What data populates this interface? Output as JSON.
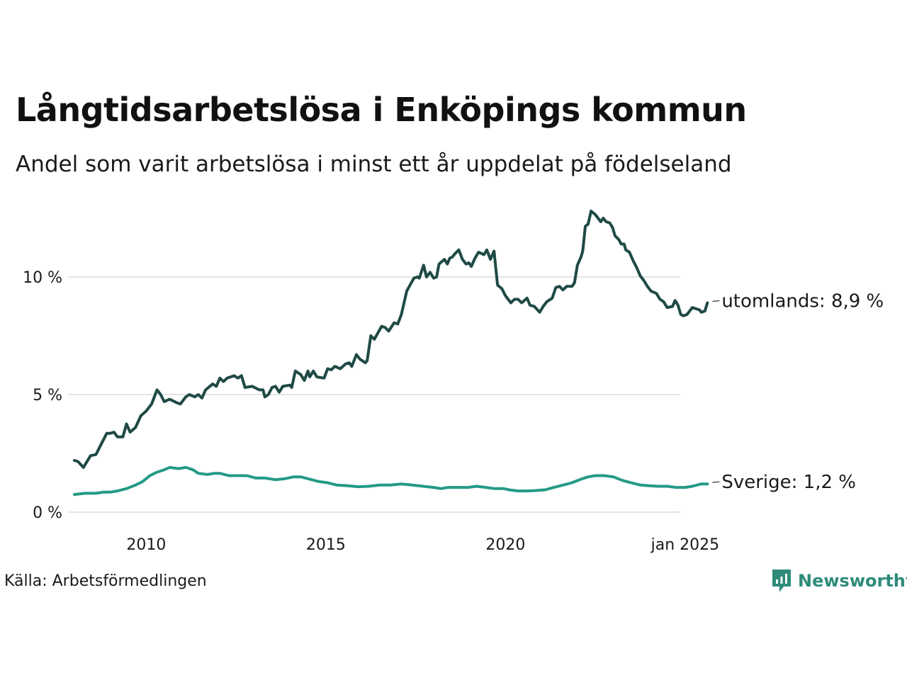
{
  "chart_data": {
    "type": "line",
    "title": "Långtidsarbetslösa i Enköpings kommun",
    "subtitle": "Andel som varit arbetslösa i minst ett år uppdelat på födelseland",
    "xlabel": "",
    "ylabel": "",
    "x_range": [
      2008.0,
      2025.0
    ],
    "ylim": [
      0,
      13
    ],
    "grid": true,
    "y_ticks": [
      {
        "value": 0,
        "label": "0 %"
      },
      {
        "value": 5,
        "label": "5 %"
      },
      {
        "value": 10,
        "label": "10 %"
      }
    ],
    "x_ticks": [
      {
        "value": 2010,
        "label": "2010"
      },
      {
        "value": 2015,
        "label": "2015"
      },
      {
        "value": 2020,
        "label": "2020"
      },
      {
        "value": 2025,
        "label": "jan 2025"
      }
    ],
    "series": [
      {
        "name": "utomlands",
        "end_label": "utomlands: 8,9 %",
        "color": "#1f4a45",
        "points": [
          [
            2008.0,
            2.2
          ],
          [
            2008.1,
            2.15
          ],
          [
            2008.25,
            1.9
          ],
          [
            2008.45,
            2.4
          ],
          [
            2008.6,
            2.45
          ],
          [
            2008.75,
            2.9
          ],
          [
            2008.9,
            3.35
          ],
          [
            2009.0,
            3.35
          ],
          [
            2009.1,
            3.4
          ],
          [
            2009.2,
            3.2
          ],
          [
            2009.35,
            3.2
          ],
          [
            2009.45,
            3.75
          ],
          [
            2009.55,
            3.4
          ],
          [
            2009.7,
            3.6
          ],
          [
            2009.85,
            4.1
          ],
          [
            2010.0,
            4.3
          ],
          [
            2010.15,
            4.6
          ],
          [
            2010.3,
            5.2
          ],
          [
            2010.4,
            5.0
          ],
          [
            2010.5,
            4.7
          ],
          [
            2010.65,
            4.8
          ],
          [
            2010.85,
            4.65
          ],
          [
            2010.95,
            4.6
          ],
          [
            2011.1,
            4.9
          ],
          [
            2011.2,
            5.0
          ],
          [
            2011.35,
            4.9
          ],
          [
            2011.45,
            5.0
          ],
          [
            2011.55,
            4.85
          ],
          [
            2011.65,
            5.2
          ],
          [
            2011.85,
            5.45
          ],
          [
            2011.95,
            5.35
          ],
          [
            2012.05,
            5.7
          ],
          [
            2012.15,
            5.55
          ],
          [
            2012.25,
            5.7
          ],
          [
            2012.45,
            5.8
          ],
          [
            2012.55,
            5.7
          ],
          [
            2012.65,
            5.8
          ],
          [
            2012.75,
            5.3
          ],
          [
            2012.95,
            5.35
          ],
          [
            2013.15,
            5.2
          ],
          [
            2013.25,
            5.2
          ],
          [
            2013.3,
            4.9
          ],
          [
            2013.4,
            5.0
          ],
          [
            2013.5,
            5.3
          ],
          [
            2013.6,
            5.35
          ],
          [
            2013.7,
            5.1
          ],
          [
            2013.8,
            5.35
          ],
          [
            2014.0,
            5.4
          ],
          [
            2014.05,
            5.3
          ],
          [
            2014.15,
            6.0
          ],
          [
            2014.3,
            5.85
          ],
          [
            2014.4,
            5.6
          ],
          [
            2014.5,
            6.0
          ],
          [
            2014.55,
            5.75
          ],
          [
            2014.65,
            6.0
          ],
          [
            2014.75,
            5.75
          ],
          [
            2014.95,
            5.7
          ],
          [
            2015.05,
            6.1
          ],
          [
            2015.15,
            6.05
          ],
          [
            2015.25,
            6.2
          ],
          [
            2015.4,
            6.1
          ],
          [
            2015.55,
            6.3
          ],
          [
            2015.65,
            6.35
          ],
          [
            2015.72,
            6.2
          ],
          [
            2015.85,
            6.7
          ],
          [
            2015.95,
            6.5
          ],
          [
            2016.1,
            6.35
          ],
          [
            2016.15,
            6.45
          ],
          [
            2016.25,
            7.5
          ],
          [
            2016.35,
            7.35
          ],
          [
            2016.55,
            7.9
          ],
          [
            2016.65,
            7.85
          ],
          [
            2016.75,
            7.7
          ],
          [
            2016.9,
            8.05
          ],
          [
            2017.0,
            8.0
          ],
          [
            2017.1,
            8.4
          ],
          [
            2017.25,
            9.4
          ],
          [
            2017.45,
            9.95
          ],
          [
            2017.55,
            10.0
          ],
          [
            2017.6,
            9.95
          ],
          [
            2017.72,
            10.5
          ],
          [
            2017.8,
            10.0
          ],
          [
            2017.9,
            10.2
          ],
          [
            2018.0,
            9.95
          ],
          [
            2018.08,
            10.0
          ],
          [
            2018.15,
            10.55
          ],
          [
            2018.3,
            10.75
          ],
          [
            2018.38,
            10.55
          ],
          [
            2018.45,
            10.8
          ],
          [
            2018.52,
            10.85
          ],
          [
            2018.6,
            11.0
          ],
          [
            2018.7,
            11.15
          ],
          [
            2018.8,
            10.75
          ],
          [
            2018.9,
            10.55
          ],
          [
            2018.98,
            10.6
          ],
          [
            2019.05,
            10.45
          ],
          [
            2019.15,
            10.8
          ],
          [
            2019.25,
            11.05
          ],
          [
            2019.4,
            10.95
          ],
          [
            2019.48,
            11.15
          ],
          [
            2019.58,
            10.75
          ],
          [
            2019.68,
            11.1
          ],
          [
            2019.78,
            9.65
          ],
          [
            2019.9,
            9.5
          ],
          [
            2020.0,
            9.2
          ],
          [
            2020.15,
            8.9
          ],
          [
            2020.25,
            9.05
          ],
          [
            2020.35,
            9.05
          ],
          [
            2020.45,
            8.9
          ],
          [
            2020.6,
            9.1
          ],
          [
            2020.68,
            8.8
          ],
          [
            2020.8,
            8.75
          ],
          [
            2020.95,
            8.5
          ],
          [
            2021.05,
            8.75
          ],
          [
            2021.15,
            8.95
          ],
          [
            2021.3,
            9.1
          ],
          [
            2021.4,
            9.55
          ],
          [
            2021.5,
            9.6
          ],
          [
            2021.6,
            9.45
          ],
          [
            2021.7,
            9.6
          ],
          [
            2021.85,
            9.6
          ],
          [
            2021.92,
            9.75
          ],
          [
            2022.0,
            10.5
          ],
          [
            2022.1,
            10.85
          ],
          [
            2022.15,
            11.1
          ],
          [
            2022.22,
            12.15
          ],
          [
            2022.3,
            12.25
          ],
          [
            2022.38,
            12.8
          ],
          [
            2022.5,
            12.65
          ],
          [
            2022.65,
            12.35
          ],
          [
            2022.72,
            12.5
          ],
          [
            2022.8,
            12.35
          ],
          [
            2022.9,
            12.3
          ],
          [
            2022.98,
            12.1
          ],
          [
            2023.05,
            11.75
          ],
          [
            2023.15,
            11.6
          ],
          [
            2023.22,
            11.4
          ],
          [
            2023.3,
            11.4
          ],
          [
            2023.35,
            11.15
          ],
          [
            2023.45,
            11.05
          ],
          [
            2023.55,
            10.7
          ],
          [
            2023.65,
            10.4
          ],
          [
            2023.75,
            10.05
          ],
          [
            2023.85,
            9.85
          ],
          [
            2023.95,
            9.6
          ],
          [
            2024.05,
            9.4
          ],
          [
            2024.2,
            9.3
          ],
          [
            2024.3,
            9.05
          ],
          [
            2024.4,
            8.95
          ],
          [
            2024.5,
            8.7
          ],
          [
            2024.65,
            8.75
          ],
          [
            2024.72,
            9.0
          ],
          [
            2024.8,
            8.8
          ],
          [
            2024.88,
            8.4
          ],
          [
            2024.95,
            8.35
          ],
          [
            2025.05,
            8.4
          ],
          [
            2025.2,
            8.7
          ],
          [
            2025.3,
            8.65
          ],
          [
            2025.4,
            8.6
          ],
          [
            2025.45,
            8.5
          ],
          [
            2025.55,
            8.55
          ],
          [
            2025.62,
            8.9
          ]
        ]
      },
      {
        "name": "Sverige",
        "end_label": "Sverige: 1,2 %",
        "color": "#249a86",
        "points": [
          [
            2008.0,
            0.75
          ],
          [
            2008.3,
            0.8
          ],
          [
            2008.6,
            0.8
          ],
          [
            2008.8,
            0.85
          ],
          [
            2009.0,
            0.85
          ],
          [
            2009.2,
            0.9
          ],
          [
            2009.45,
            1.0
          ],
          [
            2009.7,
            1.15
          ],
          [
            2009.9,
            1.3
          ],
          [
            2010.1,
            1.55
          ],
          [
            2010.3,
            1.7
          ],
          [
            2010.5,
            1.8
          ],
          [
            2010.65,
            1.9
          ],
          [
            2010.9,
            1.85
          ],
          [
            2011.1,
            1.9
          ],
          [
            2011.3,
            1.8
          ],
          [
            2011.45,
            1.65
          ],
          [
            2011.7,
            1.6
          ],
          [
            2011.9,
            1.65
          ],
          [
            2012.05,
            1.65
          ],
          [
            2012.3,
            1.55
          ],
          [
            2012.55,
            1.55
          ],
          [
            2012.8,
            1.55
          ],
          [
            2013.05,
            1.45
          ],
          [
            2013.3,
            1.45
          ],
          [
            2013.6,
            1.38
          ],
          [
            2013.85,
            1.42
          ],
          [
            2014.1,
            1.5
          ],
          [
            2014.3,
            1.5
          ],
          [
            2014.55,
            1.4
          ],
          [
            2014.8,
            1.3
          ],
          [
            2015.05,
            1.25
          ],
          [
            2015.3,
            1.15
          ],
          [
            2015.6,
            1.12
          ],
          [
            2015.9,
            1.08
          ],
          [
            2016.2,
            1.1
          ],
          [
            2016.5,
            1.15
          ],
          [
            2016.8,
            1.15
          ],
          [
            2017.1,
            1.2
          ],
          [
            2017.4,
            1.15
          ],
          [
            2017.7,
            1.1
          ],
          [
            2018.0,
            1.05
          ],
          [
            2018.2,
            1.0
          ],
          [
            2018.4,
            1.05
          ],
          [
            2018.7,
            1.05
          ],
          [
            2018.95,
            1.05
          ],
          [
            2019.2,
            1.1
          ],
          [
            2019.45,
            1.05
          ],
          [
            2019.7,
            1.0
          ],
          [
            2019.95,
            1.0
          ],
          [
            2020.1,
            0.95
          ],
          [
            2020.35,
            0.9
          ],
          [
            2020.6,
            0.9
          ],
          [
            2020.85,
            0.92
          ],
          [
            2021.1,
            0.95
          ],
          [
            2021.35,
            1.05
          ],
          [
            2021.6,
            1.15
          ],
          [
            2021.85,
            1.25
          ],
          [
            2022.1,
            1.4
          ],
          [
            2022.3,
            1.5
          ],
          [
            2022.5,
            1.55
          ],
          [
            2022.75,
            1.55
          ],
          [
            2023.0,
            1.5
          ],
          [
            2023.25,
            1.35
          ],
          [
            2023.5,
            1.25
          ],
          [
            2023.75,
            1.15
          ],
          [
            2024.0,
            1.12
          ],
          [
            2024.25,
            1.1
          ],
          [
            2024.5,
            1.1
          ],
          [
            2024.75,
            1.05
          ],
          [
            2025.0,
            1.05
          ],
          [
            2025.2,
            1.1
          ],
          [
            2025.45,
            1.2
          ],
          [
            2025.62,
            1.2
          ]
        ]
      }
    ]
  },
  "footer": {
    "source": "Källa: Arbetsförmedlingen",
    "brand": "Newsworthy"
  },
  "colors": {
    "grid": "#e4e4e4",
    "brand": "#2e8b7a"
  },
  "icons": {
    "brand_logo": "newsworthy-logo-icon"
  }
}
